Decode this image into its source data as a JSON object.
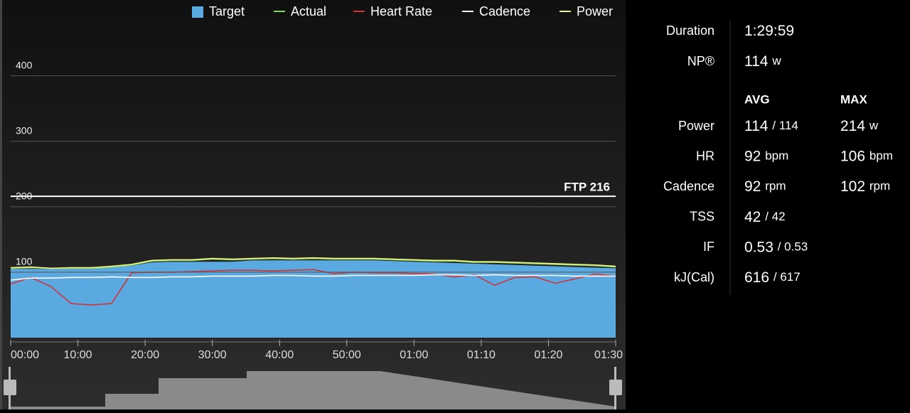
{
  "chart_data": {
    "type": "line",
    "x": [
      0,
      3,
      6,
      9,
      12,
      15,
      18,
      21,
      24,
      27,
      30,
      33,
      36,
      39,
      42,
      45,
      48,
      51,
      54,
      57,
      60,
      63,
      66,
      69,
      72,
      75,
      78,
      81,
      84,
      87,
      90
    ],
    "series": [
      {
        "name": "Target",
        "color": "#5aa9e0",
        "style": "area",
        "values": [
          105,
          105,
          105,
          105,
          105,
          108,
          110,
          115,
          116,
          116,
          116,
          116,
          118,
          118,
          118,
          118,
          118,
          118,
          118,
          117,
          116,
          115,
          114,
          113,
          112,
          111,
          110,
          109,
          108,
          107,
          106
        ]
      },
      {
        "name": "Actual",
        "color": "#7ed957",
        "style": "line",
        "values": [
          106,
          107,
          106,
          106,
          106,
          108,
          111,
          117,
          118,
          118,
          120,
          119,
          120,
          121,
          120,
          121,
          120,
          120,
          120,
          119,
          118,
          117,
          117,
          115,
          115,
          114,
          113,
          112,
          111,
          110,
          108
        ]
      },
      {
        "name": "Heart Rate",
        "color": "#d0343a",
        "style": "line",
        "values": [
          82,
          92,
          78,
          52,
          50,
          52,
          99,
          100,
          100,
          101,
          102,
          103,
          103,
          102,
          103,
          104,
          98,
          100,
          99,
          99,
          98,
          97,
          93,
          96,
          80,
          92,
          93,
          83,
          90,
          97,
          94
        ]
      },
      {
        "name": "Cadence",
        "color": "#ffffff",
        "style": "line",
        "values": [
          88,
          91,
          91,
          92,
          92,
          93,
          92,
          92,
          93,
          93,
          94,
          94,
          94,
          95,
          95,
          94,
          94,
          95,
          95,
          95,
          95,
          96,
          96,
          95,
          96,
          95,
          95,
          95,
          94,
          94,
          94
        ]
      },
      {
        "name": "Power",
        "color": "#f2f28a",
        "style": "line",
        "values": [
          107,
          108,
          106,
          107,
          107,
          109,
          112,
          118,
          119,
          119,
          121,
          120,
          121,
          122,
          121,
          122,
          121,
          121,
          121,
          120,
          119,
          118,
          118,
          116,
          116,
          115,
          114,
          113,
          112,
          111,
          109
        ]
      }
    ],
    "xlim": [
      0,
      90
    ],
    "xticks": [
      {
        "value": 0,
        "label": "00:00"
      },
      {
        "value": 10,
        "label": "10:00"
      },
      {
        "value": 20,
        "label": "20:00"
      },
      {
        "value": 30,
        "label": "30:00"
      },
      {
        "value": 40,
        "label": "40:00"
      },
      {
        "value": 50,
        "label": "50:00"
      },
      {
        "value": 60,
        "label": "01:00"
      },
      {
        "value": 70,
        "label": "01:10"
      },
      {
        "value": 80,
        "label": "01:20"
      },
      {
        "value": 90,
        "label": "01:30"
      }
    ],
    "ylim": [
      0,
      480
    ],
    "yticks": [
      100,
      200,
      300,
      400
    ],
    "grid": true,
    "ftp": {
      "value": 216,
      "label": "FTP 216"
    }
  },
  "stats": {
    "top": [
      {
        "label": "Duration",
        "value": "1:29:59"
      },
      {
        "label": "NP®",
        "value": "114",
        "unit": "w"
      }
    ],
    "headers": [
      "AVG",
      "MAX"
    ],
    "rows": [
      {
        "label": "Power",
        "avg": "114",
        "avg_unit": "/ 114",
        "max": "214",
        "max_unit": "w"
      },
      {
        "label": "HR",
        "avg": "92",
        "avg_unit": "bpm",
        "max": "106",
        "max_unit": "bpm"
      },
      {
        "label": "Cadence",
        "avg": "92",
        "avg_unit": "rpm",
        "max": "102",
        "max_unit": "rpm"
      },
      {
        "label": "TSS",
        "avg": "42",
        "avg_unit": "/ 42"
      },
      {
        "label": "IF",
        "avg": "0.53",
        "avg_unit": "/ 0.53"
      },
      {
        "label": "kJ(Cal)",
        "avg": "616",
        "avg_unit": "/ 617"
      }
    ]
  }
}
